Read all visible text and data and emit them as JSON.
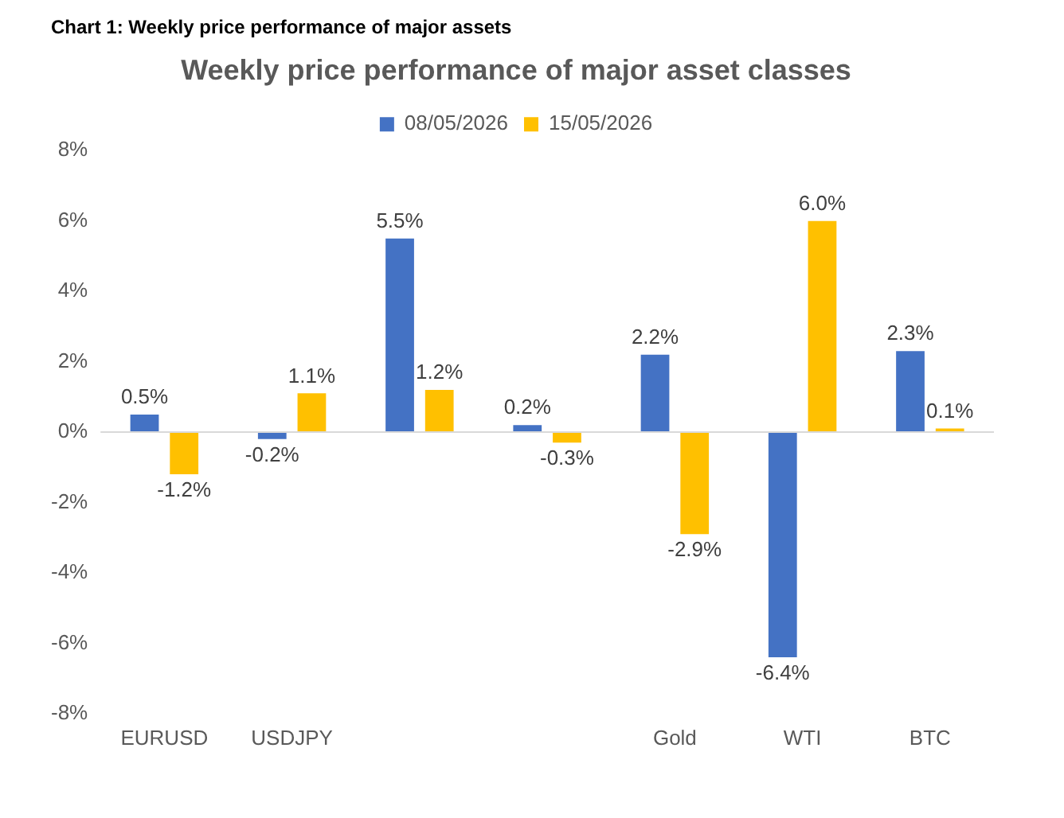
{
  "chart_data": {
    "type": "bar",
    "title": "Chart 1: Weekly price performance of major assets",
    "subtitle": "Weekly price performance of major asset classes",
    "categories": [
      "EURUSD",
      "USDJPY",
      null,
      null,
      "Gold",
      "WTI",
      "BTC"
    ],
    "series": [
      {
        "name": "08/05/2026",
        "color": "#4472c4",
        "values": [
          0.5,
          -0.2,
          5.5,
          0.2,
          2.2,
          -6.4,
          2.3
        ],
        "value_labels": [
          "0.5%",
          "-0.2%",
          "5.5%",
          "0.2%",
          "2.2%",
          "-6.4%",
          "2.3%"
        ]
      },
      {
        "name": "15/05/2026",
        "color": "#ffc000",
        "values": [
          -1.2,
          1.1,
          1.2,
          -0.3,
          -2.9,
          6.0,
          0.1
        ],
        "value_labels": [
          "-1.2%",
          "1.1%",
          "1.2%",
          "-0.3%",
          "-2.9%",
          "6.0%",
          "0.1%"
        ]
      }
    ],
    "ylim": [
      -8,
      8
    ],
    "yticks": [
      {
        "value": -8,
        "label": "-8%"
      },
      {
        "value": -6,
        "label": "-6%"
      },
      {
        "value": -4,
        "label": "-4%"
      },
      {
        "value": -2,
        "label": "-2%"
      },
      {
        "value": 0,
        "label": "0%"
      },
      {
        "value": 2,
        "label": "2%"
      },
      {
        "value": 4,
        "label": "4%"
      },
      {
        "value": 6,
        "label": "6%"
      },
      {
        "value": 8,
        "label": "8%"
      }
    ],
    "ref_lines": [
      {
        "axis": "y",
        "value": 0,
        "color": "#d9d9d9"
      }
    ],
    "legend": "top"
  }
}
